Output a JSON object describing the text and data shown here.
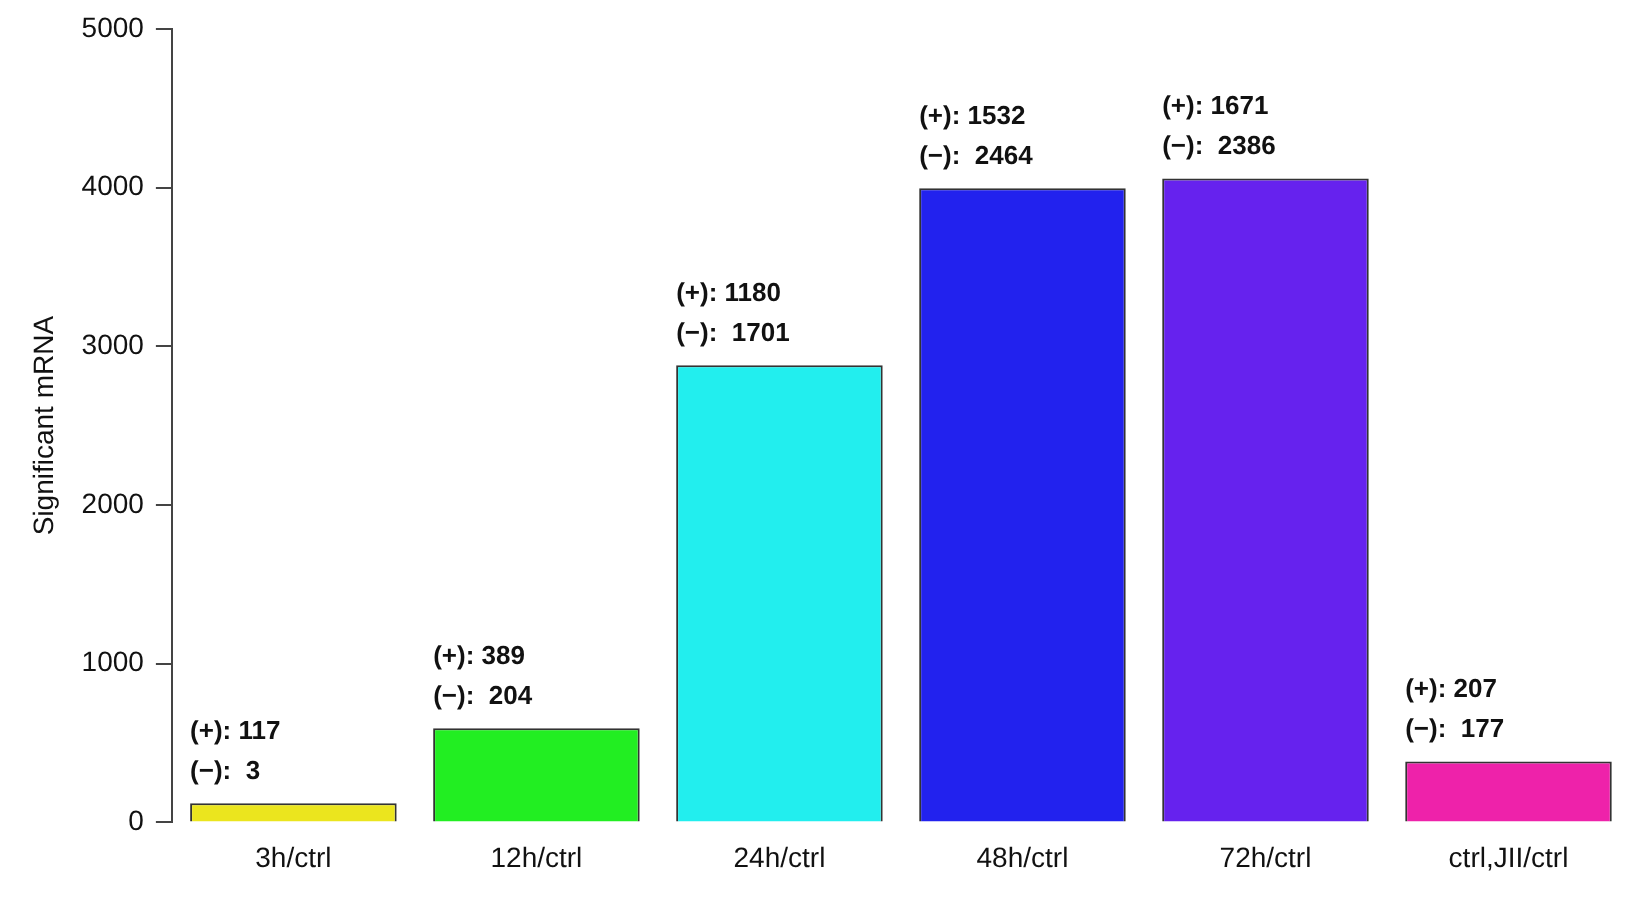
{
  "chart_data": {
    "type": "bar",
    "ylabel": "Significant mRNA",
    "categories": [
      "3h/ctrl",
      "12h/ctrl",
      "24h/ctrl",
      "48h/ctrl",
      "72h/ctrl",
      "ctrl,JII/ctrl"
    ],
    "values": [
      120,
      593,
      2881,
      3996,
      4057,
      384
    ],
    "colors": [
      "#ebe51e",
      "#22ee22",
      "#22eeee",
      "#2222ee",
      "#6622ee",
      "#ee22aa"
    ],
    "value_labels": [
      "(+): 117\n(−):  3",
      "(+): 389\n(−):  204",
      "(+): 1180\n(−):  1701",
      "(+): 1532\n(−):  2464",
      "(+): 1671\n(−):  2386",
      "(+): 207\n(−):  177"
    ],
    "ylim": [
      0,
      5000
    ],
    "yticks": [
      0,
      1000,
      2000,
      3000,
      4000,
      5000
    ],
    "grid": false,
    "legend": false
  }
}
